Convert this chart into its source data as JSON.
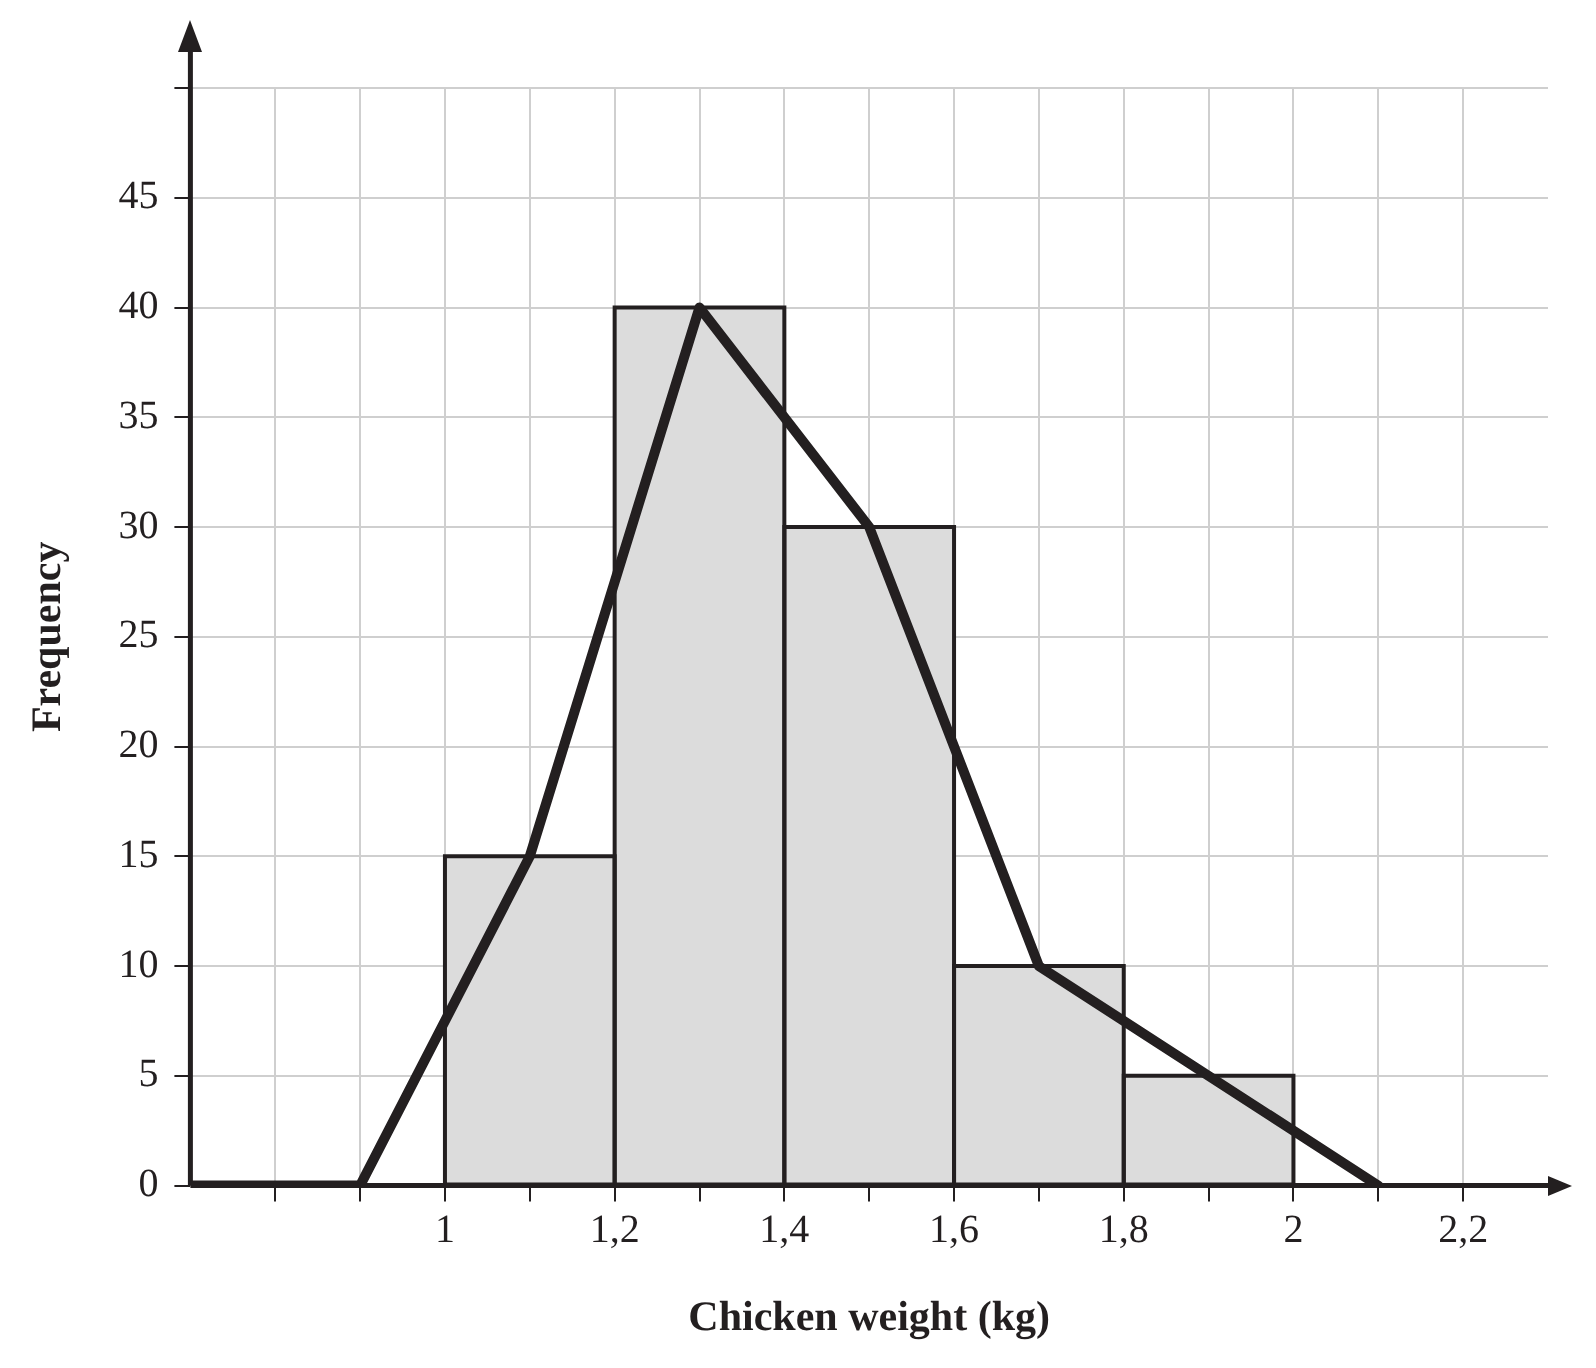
{
  "chart_data": {
    "type": "histogram",
    "xlabel": "Chicken weight (kg)",
    "ylabel": "Frequency",
    "bins": [
      1,
      1.2,
      1.4,
      1.6,
      1.8,
      2
    ],
    "values": [
      15,
      40,
      30,
      10,
      5
    ],
    "color": "#dcdcdc",
    "series": [
      {
        "type": "line",
        "color": "#231f20",
        "x": [
          0.7,
          0.9,
          1.1,
          1.3,
          1.5,
          1.7,
          1.9,
          2.1
        ],
        "values": [
          0,
          0,
          15,
          40,
          30,
          10,
          5,
          0
        ]
      }
    ],
    "xlim": [
      0.7,
      2.3
    ],
    "xticks": [
      {
        "value": 0.8,
        "label": null
      },
      {
        "value": 0.9,
        "label": null
      },
      {
        "value": 1,
        "label": "1"
      },
      {
        "value": 1.1,
        "label": null
      },
      {
        "value": 1.2,
        "label": "1,2"
      },
      {
        "value": 1.3,
        "label": null
      },
      {
        "value": 1.4,
        "label": "1,4"
      },
      {
        "value": 1.5,
        "label": null
      },
      {
        "value": 1.6,
        "label": "1,6"
      },
      {
        "value": 1.7,
        "label": null
      },
      {
        "value": 1.8,
        "label": "1,8"
      },
      {
        "value": 1.9,
        "label": null
      },
      {
        "value": 2,
        "label": "2"
      },
      {
        "value": 2.1,
        "label": null
      },
      {
        "value": 2.2,
        "label": "2,2"
      }
    ],
    "ylim": [
      0,
      50
    ],
    "yticks": [
      0,
      5,
      10,
      15,
      20,
      25,
      30,
      35,
      40,
      45,
      {
        "value": 50,
        "label": null
      }
    ],
    "grid": true,
    "legend": false,
    "marker": "none",
    "line_style": "solid"
  }
}
